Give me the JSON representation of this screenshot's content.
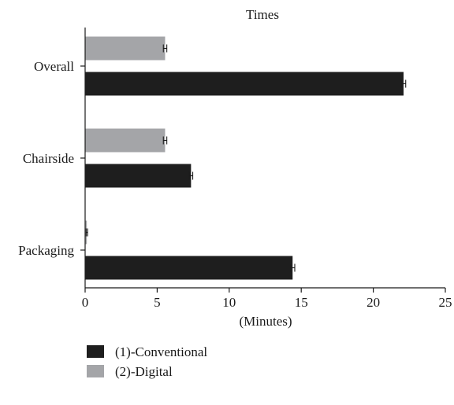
{
  "chart_data": {
    "type": "bar",
    "orientation": "horizontal",
    "title": "Times",
    "xlabel": "(Minutes)",
    "ylabel": "",
    "xlim": [
      0,
      25
    ],
    "x_ticks": [
      "0",
      "5",
      "10",
      "15",
      "20",
      "25"
    ],
    "categories": [
      "Overall",
      "Chairside",
      "Packaging"
    ],
    "series": [
      {
        "name": "(1)-Conventional",
        "color": "#1e1e1e",
        "values": [
          22.1,
          7.35,
          14.4
        ],
        "errors": [
          0.15,
          0.12,
          0.15
        ]
      },
      {
        "name": "(2)-Digital",
        "color": "#a4a5a8",
        "values": [
          5.55,
          5.55,
          0.12
        ],
        "errors": [
          0.12,
          0.12,
          0.05
        ]
      }
    ],
    "legend": {
      "position": "bottom-left",
      "order": [
        "(1)-Conventional",
        "(2)-Digital"
      ]
    },
    "grid": false
  }
}
